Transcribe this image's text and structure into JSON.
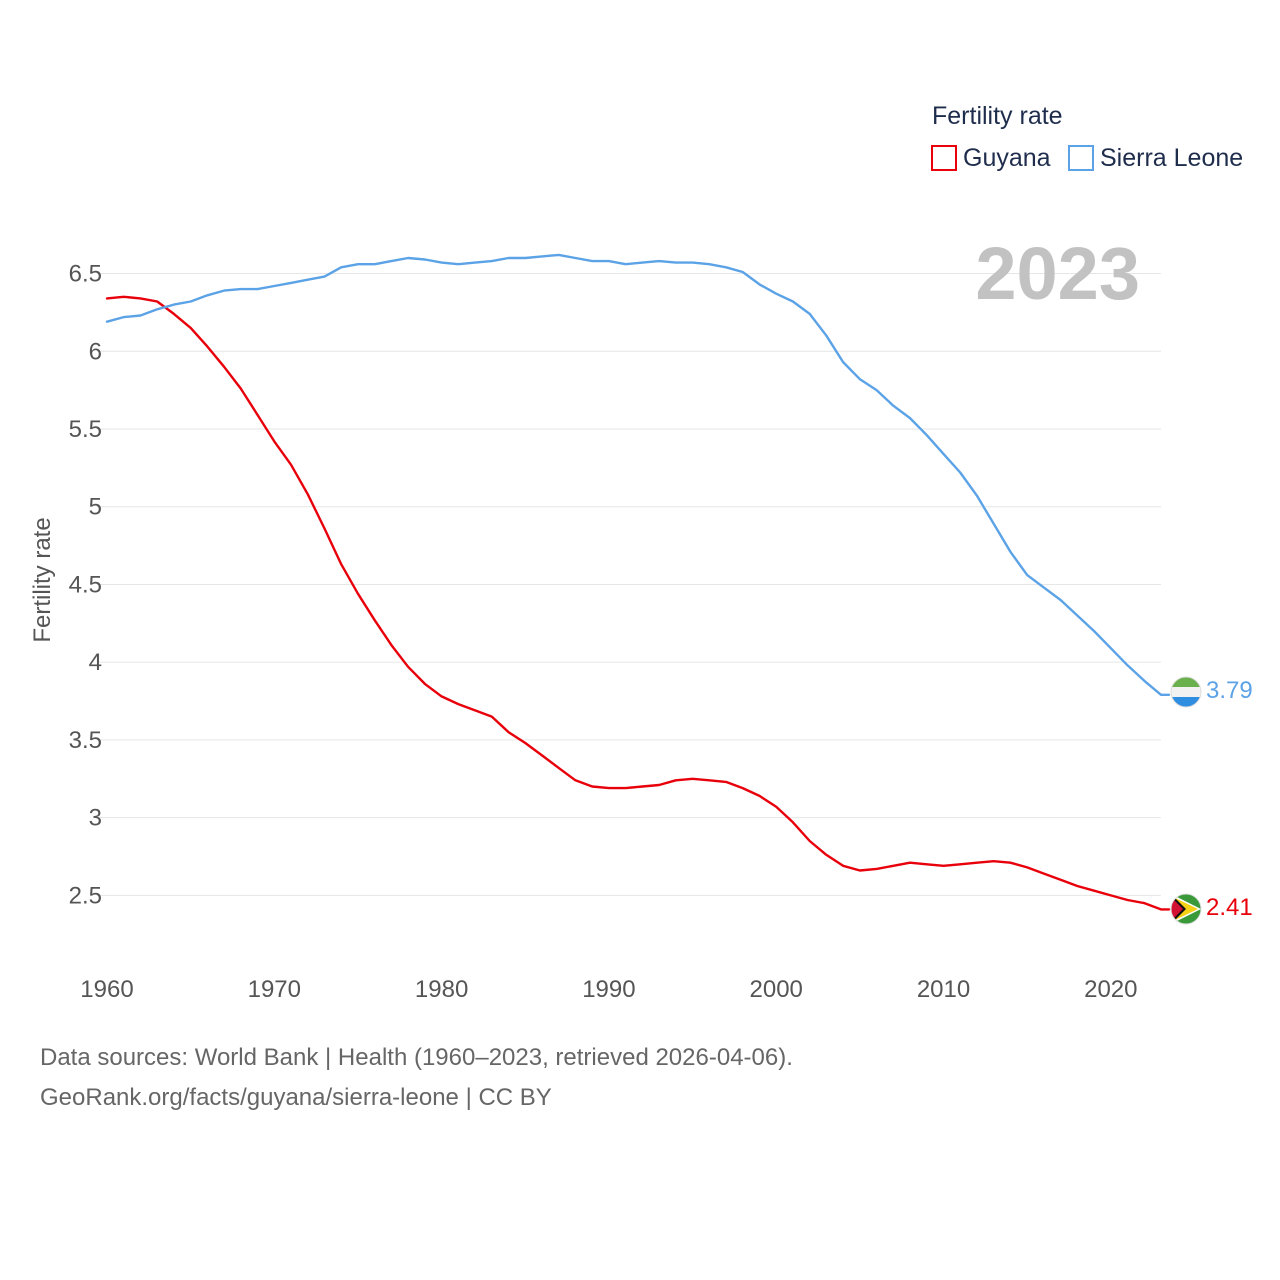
{
  "chart_data": {
    "type": "line",
    "title": "",
    "ylabel": "Fertility rate",
    "xlabel": "",
    "xlim": [
      1960,
      2023
    ],
    "ylim": [
      2.2,
      6.78
    ],
    "yticks": [
      2.5,
      3,
      3.5,
      4,
      4.5,
      5,
      5.5,
      6,
      6.5
    ],
    "ytick_labels": [
      "2.5",
      "3",
      "3.5",
      "4",
      "4.5",
      "5",
      "5.5",
      "6",
      "6.5"
    ],
    "xticks": [
      1960,
      1970,
      1980,
      1990,
      2000,
      2010,
      2020
    ],
    "xtick_labels": [
      "1960",
      "1970",
      "1980",
      "1990",
      "2000",
      "2010",
      "2020"
    ],
    "legend": {
      "title": "Fertility rate",
      "position": "top-right"
    },
    "year_label": "2023",
    "x": [
      1960,
      1961,
      1962,
      1963,
      1964,
      1965,
      1966,
      1967,
      1968,
      1969,
      1970,
      1971,
      1972,
      1973,
      1974,
      1975,
      1976,
      1977,
      1978,
      1979,
      1980,
      1981,
      1982,
      1983,
      1984,
      1985,
      1986,
      1987,
      1988,
      1989,
      1990,
      1991,
      1992,
      1993,
      1994,
      1995,
      1996,
      1997,
      1998,
      1999,
      2000,
      2001,
      2002,
      2003,
      2004,
      2005,
      2006,
      2007,
      2008,
      2009,
      2010,
      2011,
      2012,
      2013,
      2014,
      2015,
      2016,
      2017,
      2018,
      2019,
      2020,
      2021,
      2022,
      2023
    ],
    "series": [
      {
        "name": "Guyana",
        "color": "#e8000b",
        "end_label": "2.41",
        "flag_icon": "guyana-flag-icon",
        "values": [
          6.34,
          6.35,
          6.34,
          6.32,
          6.24,
          6.15,
          6.03,
          5.9,
          5.76,
          5.59,
          5.42,
          5.27,
          5.08,
          4.86,
          4.63,
          4.44,
          4.27,
          4.11,
          3.97,
          3.86,
          3.78,
          3.73,
          3.69,
          3.65,
          3.55,
          3.48,
          3.4,
          3.32,
          3.24,
          3.2,
          3.19,
          3.19,
          3.2,
          3.21,
          3.24,
          3.25,
          3.24,
          3.23,
          3.19,
          3.14,
          3.07,
          2.97,
          2.85,
          2.76,
          2.69,
          2.66,
          2.67,
          2.69,
          2.71,
          2.7,
          2.69,
          2.7,
          2.71,
          2.72,
          2.71,
          2.68,
          2.64,
          2.6,
          2.56,
          2.53,
          2.5,
          2.47,
          2.45,
          2.41
        ]
      },
      {
        "name": "Sierra Leone",
        "color": "#5ba3e6",
        "end_label": "3.79",
        "flag_icon": "sierra-leone-flag-icon",
        "values": [
          6.19,
          6.22,
          6.23,
          6.27,
          6.3,
          6.32,
          6.36,
          6.39,
          6.4,
          6.4,
          6.42,
          6.44,
          6.46,
          6.48,
          6.54,
          6.56,
          6.56,
          6.58,
          6.6,
          6.59,
          6.57,
          6.56,
          6.57,
          6.58,
          6.6,
          6.6,
          6.61,
          6.62,
          6.6,
          6.58,
          6.58,
          6.56,
          6.57,
          6.58,
          6.57,
          6.57,
          6.56,
          6.54,
          6.51,
          6.43,
          6.37,
          6.32,
          6.24,
          6.1,
          5.93,
          5.82,
          5.75,
          5.65,
          5.57,
          5.46,
          5.34,
          5.22,
          5.07,
          4.89,
          4.71,
          4.56,
          4.48,
          4.4,
          4.3,
          4.2,
          4.09,
          3.98,
          3.88,
          3.79
        ]
      }
    ]
  },
  "footer": {
    "line1": "Data sources: World Bank | Health (1960–2023, retrieved 2026-04-06).",
    "line2": "GeoRank.org/facts/guyana/sierra-leone | CC BY"
  }
}
